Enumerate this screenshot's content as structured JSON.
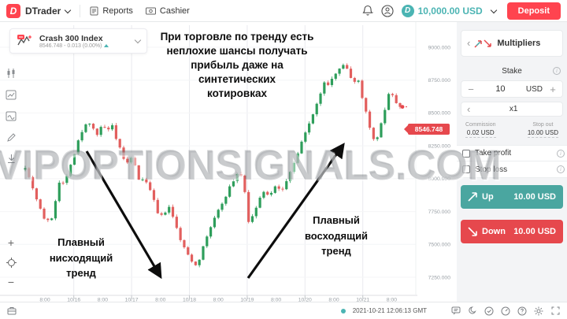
{
  "topbar": {
    "logo_glyph": "D",
    "app_name": "DTrader",
    "reports": "Reports",
    "cashier": "Cashier",
    "balance": "10,000.00 USD",
    "deposit": "Deposit"
  },
  "symbol": {
    "name": "Crash 300 Index",
    "quote_line": "8546.748 - 0.013 (0.00%)"
  },
  "annotations": {
    "top": [
      "При торговле по тренду есть",
      "неплохие шансы получать",
      "прибыль даже на",
      "синтетических",
      "котировках"
    ],
    "down_trend": [
      "Плавный",
      "нисходящий",
      "тренд"
    ],
    "up_trend": [
      "Плавный",
      "восходящий",
      "тренд"
    ]
  },
  "watermark": "VIPOPTIONSIGNALS.COM",
  "panel": {
    "trade_type": "Multipliers",
    "stake_label": "Stake",
    "stake_value": "10",
    "currency": "USD",
    "multiplier": "x1",
    "commission_label": "Commission",
    "commission_value": "0.02 USD",
    "stop_out_label": "Stop out",
    "stop_out_value": "10.00 USD",
    "take_profit_label": "Take profit",
    "stop_loss_label": "Stop loss",
    "up_label": "Up",
    "up_value": "10.00 USD",
    "down_label": "Down",
    "down_value": "10.00 USD"
  },
  "statusbar": {
    "timestamp": "2021-10-21 12:06:13 GMT"
  },
  "icons": {
    "left_toolbar": [
      "chart-interval-icon",
      "chart-type-icon",
      "indicators-icon",
      "draw-icon",
      "download-icon"
    ],
    "zoom": [
      "zoom-in-icon",
      "crosshair-icon",
      "zoom-out-icon"
    ],
    "statusbar": [
      "portfolio-icon",
      "chat-icon",
      "theme-moon-icon",
      "check-circle-icon",
      "gauge-icon",
      "help-icon",
      "settings-gear-icon",
      "fullscreen-icon"
    ]
  },
  "colors": {
    "accent_red": "#ff444f",
    "accent_teal": "#4bb4b3",
    "tag_red": "#e6484d",
    "up_button": "#4aa6a0",
    "down_button": "#e6484d"
  },
  "chart_data": {
    "type": "candlestick",
    "symbol": "Crash 300 Index",
    "last_price": 8546.748,
    "last_price_label": "8546.748",
    "grid": true,
    "y_ticks": [
      "9000.000",
      "8750.000",
      "8500.000",
      "8250.000",
      "8000.000",
      "7750.000",
      "7500.000",
      "7250.000"
    ],
    "y_tick_values": [
      9000,
      8750,
      8500,
      8250,
      8000,
      7750,
      7500,
      7250
    ],
    "x_ticks": [
      "8:00",
      "10/16",
      "8:00",
      "10/17",
      "8:00",
      "10/18",
      "8:00",
      "10/19",
      "8:00",
      "10/20",
      "8:00",
      "10/21",
      "8:00"
    ],
    "x_tick_start": 57,
    "x_tick_step": 36.7,
    "y_map": {
      "p_top": 9000,
      "y_top": 32,
      "p_bot": 7250,
      "y_bot": 324
    },
    "plot": {
      "x0": 32,
      "x1": 508,
      "candles": 100
    },
    "candle_colors": {
      "bull": "#2e9e5b",
      "bear": "#e25f5e"
    },
    "anchors": [
      [
        32,
        8090
      ],
      [
        40,
        7960
      ],
      [
        48,
        7820
      ],
      [
        56,
        7700
      ],
      [
        64,
        7660
      ],
      [
        70,
        7820
      ],
      [
        76,
        8000
      ],
      [
        82,
        7950
      ],
      [
        88,
        8090
      ],
      [
        94,
        8180
      ],
      [
        100,
        8300
      ],
      [
        106,
        8380
      ],
      [
        112,
        8440
      ],
      [
        118,
        8390
      ],
      [
        124,
        8330
      ],
      [
        130,
        8410
      ],
      [
        136,
        8360
      ],
      [
        142,
        8410
      ],
      [
        148,
        8280
      ],
      [
        154,
        8210
      ],
      [
        160,
        8100
      ],
      [
        166,
        8160
      ],
      [
        172,
        8090
      ],
      [
        178,
        7960
      ],
      [
        184,
        8010
      ],
      [
        190,
        7920
      ],
      [
        196,
        7820
      ],
      [
        202,
        7700
      ],
      [
        208,
        7730
      ],
      [
        214,
        7790
      ],
      [
        220,
        7700
      ],
      [
        226,
        7590
      ],
      [
        232,
        7490
      ],
      [
        238,
        7430
      ],
      [
        244,
        7370
      ],
      [
        250,
        7340
      ],
      [
        256,
        7440
      ],
      [
        262,
        7550
      ],
      [
        268,
        7640
      ],
      [
        274,
        7720
      ],
      [
        280,
        7790
      ],
      [
        286,
        7860
      ],
      [
        292,
        7940
      ],
      [
        298,
        8000
      ],
      [
        304,
        8070
      ],
      [
        310,
        7940
      ],
      [
        316,
        7660
      ],
      [
        322,
        7720
      ],
      [
        328,
        7830
      ],
      [
        334,
        7900
      ],
      [
        340,
        7870
      ],
      [
        346,
        7910
      ],
      [
        352,
        7950
      ],
      [
        358,
        7900
      ],
      [
        364,
        7990
      ],
      [
        370,
        8070
      ],
      [
        376,
        8150
      ],
      [
        382,
        8260
      ],
      [
        388,
        8350
      ],
      [
        394,
        8440
      ],
      [
        400,
        8540
      ],
      [
        406,
        8620
      ],
      [
        412,
        8740
      ],
      [
        418,
        8700
      ],
      [
        424,
        8790
      ],
      [
        430,
        8840
      ],
      [
        436,
        8870
      ],
      [
        442,
        8820
      ],
      [
        448,
        8730
      ],
      [
        454,
        8770
      ],
      [
        460,
        8620
      ],
      [
        466,
        8480
      ],
      [
        472,
        8330
      ],
      [
        478,
        8280
      ],
      [
        484,
        8420
      ],
      [
        490,
        8560
      ],
      [
        494,
        8660
      ],
      [
        498,
        8640
      ],
      [
        502,
        8590
      ],
      [
        508,
        8547
      ]
    ],
    "trend_arrows": [
      {
        "from": [
          110,
          164
        ],
        "to": [
          203,
          322
        ]
      },
      {
        "from": [
          315,
          325
        ],
        "to": [
          435,
          157
        ]
      }
    ]
  }
}
